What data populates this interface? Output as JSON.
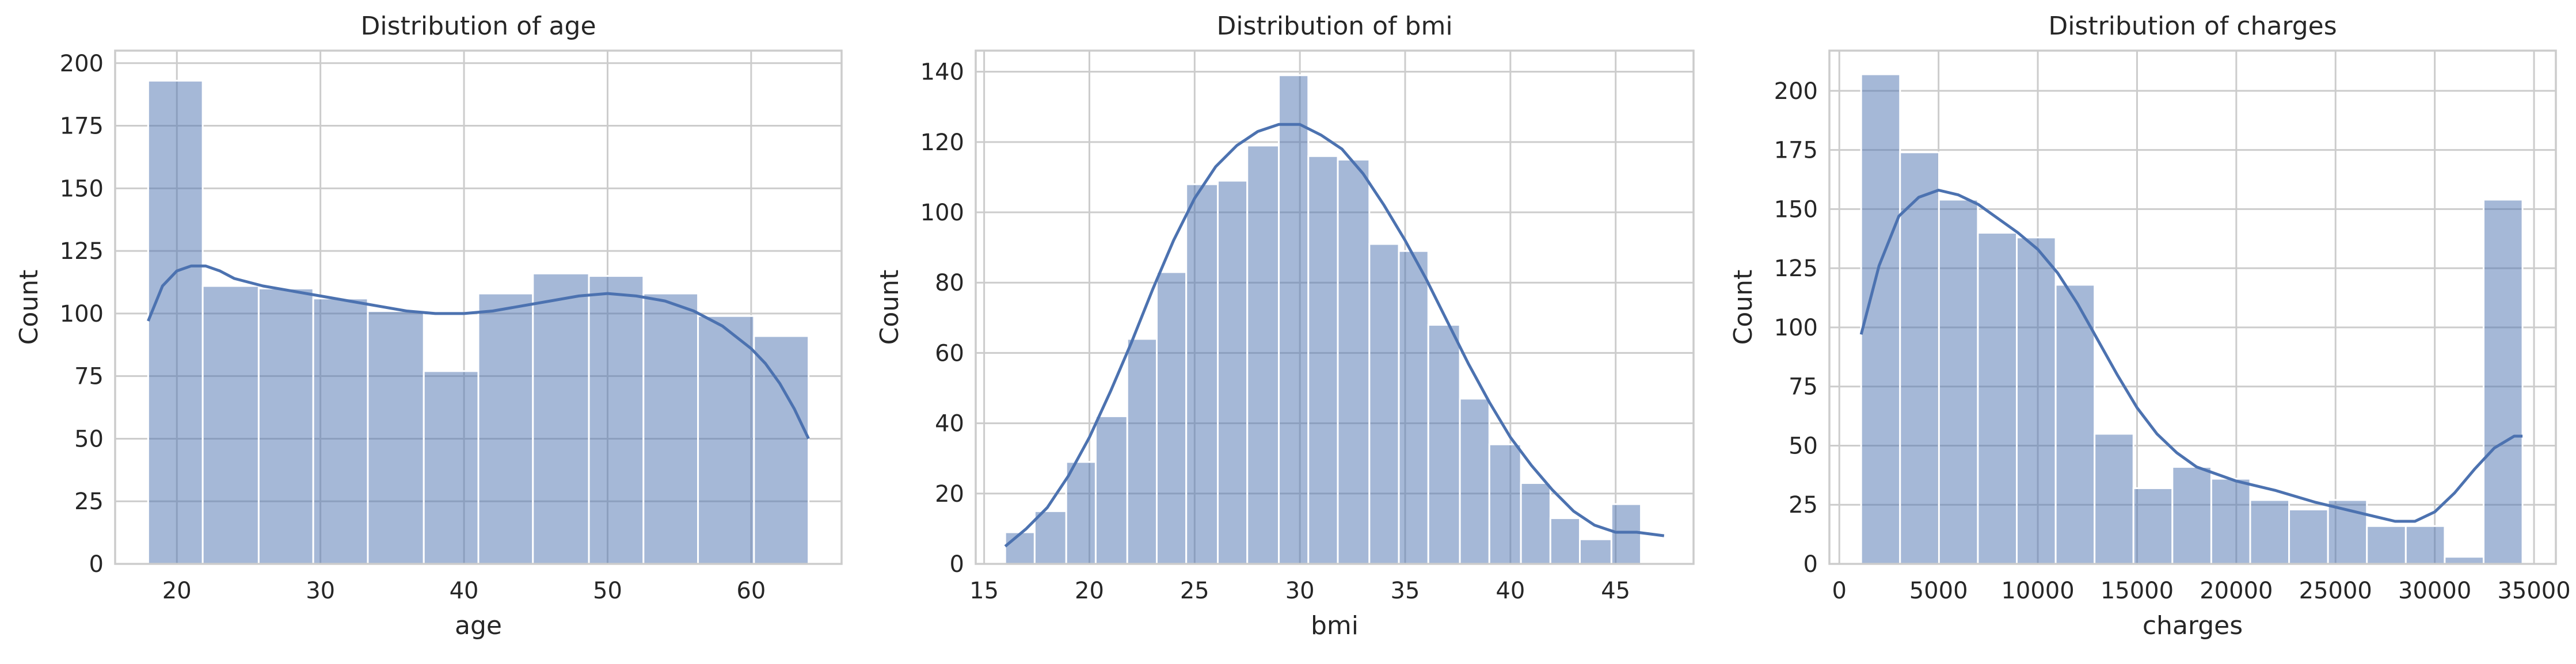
{
  "chart_data": [
    {
      "type": "bar",
      "subtype": "histogram",
      "title": "Distribution of age",
      "xlabel": "age",
      "ylabel": "Count",
      "xlim": [
        15.7,
        66.3
      ],
      "ylim": [
        0,
        205
      ],
      "xticks": [
        20,
        30,
        40,
        50,
        60
      ],
      "yticks": [
        0,
        25,
        50,
        75,
        100,
        125,
        150,
        175,
        200
      ],
      "grid": true,
      "bins": [
        {
          "x0": 18,
          "x1": 21.8,
          "count": 193
        },
        {
          "x0": 21.8,
          "x1": 25.7,
          "count": 111
        },
        {
          "x0": 25.7,
          "x1": 29.5,
          "count": 110
        },
        {
          "x0": 29.5,
          "x1": 33.3,
          "count": 106
        },
        {
          "x0": 33.3,
          "x1": 37.2,
          "count": 101
        },
        {
          "x0": 37.2,
          "x1": 41.0,
          "count": 77
        },
        {
          "x0": 41.0,
          "x1": 44.8,
          "count": 108
        },
        {
          "x0": 44.8,
          "x1": 48.7,
          "count": 116
        },
        {
          "x0": 48.7,
          "x1": 52.5,
          "count": 115
        },
        {
          "x0": 52.5,
          "x1": 56.3,
          "count": 108
        },
        {
          "x0": 56.3,
          "x1": 60.2,
          "count": 99
        },
        {
          "x0": 60.2,
          "x1": 64.0,
          "count": 91
        }
      ],
      "kde": {
        "x": [
          18,
          19,
          20,
          21,
          22,
          23,
          24,
          26,
          28,
          30,
          32,
          34,
          36,
          38,
          40,
          42,
          44,
          46,
          48,
          50,
          52,
          54,
          56,
          58,
          60,
          61,
          62,
          63,
          64
        ],
        "y": [
          97,
          111,
          117,
          119,
          119,
          117,
          114,
          111,
          109,
          107,
          105,
          103,
          101,
          100,
          100,
          101,
          103,
          105,
          107,
          108,
          107,
          105,
          101,
          95,
          86,
          80,
          72,
          62,
          50
        ]
      }
    },
    {
      "type": "bar",
      "subtype": "histogram",
      "title": "Distribution of bmi",
      "xlabel": "bmi",
      "ylabel": "Count",
      "xlim": [
        14.6,
        48.7
      ],
      "ylim": [
        0,
        146
      ],
      "xticks": [
        15,
        20,
        25,
        30,
        35,
        40,
        45
      ],
      "yticks": [
        0,
        20,
        40,
        60,
        80,
        100,
        120,
        140
      ],
      "grid": true,
      "bins": [
        {
          "x0": 16.0,
          "x1": 17.4,
          "count": 9
        },
        {
          "x0": 17.4,
          "x1": 18.9,
          "count": 15
        },
        {
          "x0": 18.9,
          "x1": 20.3,
          "count": 29
        },
        {
          "x0": 20.3,
          "x1": 21.8,
          "count": 42
        },
        {
          "x0": 21.8,
          "x1": 23.2,
          "count": 64
        },
        {
          "x0": 23.2,
          "x1": 24.6,
          "count": 83
        },
        {
          "x0": 24.6,
          "x1": 26.1,
          "count": 108
        },
        {
          "x0": 26.1,
          "x1": 27.5,
          "count": 109
        },
        {
          "x0": 27.5,
          "x1": 29.0,
          "count": 119
        },
        {
          "x0": 29.0,
          "x1": 30.4,
          "count": 139
        },
        {
          "x0": 30.4,
          "x1": 31.8,
          "count": 116
        },
        {
          "x0": 31.8,
          "x1": 33.3,
          "count": 115
        },
        {
          "x0": 33.3,
          "x1": 34.7,
          "count": 91
        },
        {
          "x0": 34.7,
          "x1": 36.1,
          "count": 89
        },
        {
          "x0": 36.1,
          "x1": 37.6,
          "count": 68
        },
        {
          "x0": 37.6,
          "x1": 39.0,
          "count": 47
        },
        {
          "x0": 39.0,
          "x1": 40.5,
          "count": 34
        },
        {
          "x0": 40.5,
          "x1": 41.9,
          "count": 23
        },
        {
          "x0": 41.9,
          "x1": 43.3,
          "count": 13
        },
        {
          "x0": 43.3,
          "x1": 44.8,
          "count": 7
        },
        {
          "x0": 44.8,
          "x1": 46.2,
          "count": 17
        },
        {
          "x0": 46.2,
          "x1": 47.3,
          "count": 0
        }
      ],
      "kde": {
        "x": [
          16,
          17,
          18,
          19,
          20,
          21,
          22,
          23,
          24,
          25,
          26,
          27,
          28,
          29,
          30,
          31,
          32,
          33,
          34,
          35,
          36,
          37,
          38,
          39,
          40,
          41,
          42,
          43,
          44,
          45,
          46,
          47.3
        ],
        "y": [
          5,
          10,
          16,
          25,
          36,
          49,
          63,
          78,
          92,
          104,
          113,
          119,
          123,
          125,
          125,
          122,
          118,
          111,
          102,
          92,
          81,
          69,
          57,
          46,
          36,
          28,
          21,
          15,
          11,
          9,
          9,
          8
        ]
      }
    },
    {
      "type": "bar",
      "subtype": "histogram",
      "title": "Distribution of charges",
      "xlabel": "charges",
      "ylabel": "Count",
      "xlim": [
        -500,
        36100
      ],
      "ylim": [
        0,
        217
      ],
      "xticks": [
        0,
        5000,
        10000,
        15000,
        20000,
        25000,
        30000,
        35000
      ],
      "yticks": [
        0,
        25,
        50,
        75,
        100,
        125,
        150,
        175,
        200
      ],
      "grid": true,
      "bins": [
        {
          "x0": 1100,
          "x1": 3060,
          "count": 207
        },
        {
          "x0": 3060,
          "x1": 5020,
          "count": 174
        },
        {
          "x0": 5020,
          "x1": 6980,
          "count": 154
        },
        {
          "x0": 6980,
          "x1": 8940,
          "count": 140
        },
        {
          "x0": 8940,
          "x1": 10900,
          "count": 138
        },
        {
          "x0": 10900,
          "x1": 12860,
          "count": 118
        },
        {
          "x0": 12860,
          "x1": 14820,
          "count": 55
        },
        {
          "x0": 14820,
          "x1": 16780,
          "count": 32
        },
        {
          "x0": 16780,
          "x1": 18740,
          "count": 41
        },
        {
          "x0": 18740,
          "x1": 20700,
          "count": 36
        },
        {
          "x0": 20700,
          "x1": 22660,
          "count": 27
        },
        {
          "x0": 22660,
          "x1": 24620,
          "count": 23
        },
        {
          "x0": 24620,
          "x1": 26580,
          "count": 27
        },
        {
          "x0": 26580,
          "x1": 28540,
          "count": 16
        },
        {
          "x0": 28540,
          "x1": 30500,
          "count": 16
        },
        {
          "x0": 30500,
          "x1": 32460,
          "count": 3
        },
        {
          "x0": 32460,
          "x1": 34420,
          "count": 154
        }
      ],
      "kde": {
        "x": [
          1100,
          2000,
          3000,
          4000,
          5000,
          6000,
          7000,
          8000,
          9000,
          10000,
          11000,
          12000,
          13000,
          14000,
          15000,
          16000,
          17000,
          18000,
          20000,
          22000,
          24000,
          26000,
          27000,
          28000,
          29000,
          30000,
          31000,
          32000,
          33000,
          34000,
          34420
        ],
        "y": [
          97,
          126,
          147,
          155,
          158,
          156,
          152,
          146,
          140,
          133,
          123,
          110,
          95,
          80,
          66,
          55,
          47,
          41,
          35,
          31,
          26,
          22,
          20,
          18,
          18,
          22,
          30,
          40,
          49,
          54,
          54
        ]
      }
    }
  ]
}
